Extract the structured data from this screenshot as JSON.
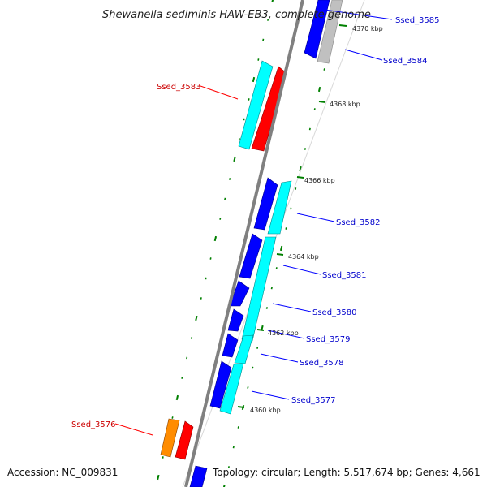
{
  "title": "Shewanella sediminis HAW-EB3, complete genome",
  "footer": {
    "accession": "Accession: NC_009831",
    "summary": "Topology: circular; Length: 5,517,674 bp; Genes: 4,661"
  },
  "scale_labels": [
    "4370 kbp",
    "4368 kbp",
    "4366 kbp",
    "4364 kbp",
    "4362 kbp",
    "4360 kbp"
  ],
  "genes": [
    {
      "name": "Ssed_3585",
      "strand": "-",
      "color": "#0000ff",
      "label_color": "#0000cc"
    },
    {
      "name": "Ssed_3584",
      "strand": "-",
      "color": "#bbbbbb",
      "label_color": "#0000cc"
    },
    {
      "name": "Ssed_3583",
      "strand": "+",
      "color": "#ff0000",
      "label_color": "#cc0000"
    },
    {
      "name": "Ssed_3582",
      "strand": "-",
      "color": "#00ffff",
      "label_color": "#0000cc"
    },
    {
      "name": "Ssed_3581",
      "strand": "-",
      "color": "#00ffff",
      "label_color": "#0000cc"
    },
    {
      "name": "Ssed_3580",
      "strand": "-",
      "color": "#0000ff",
      "label_color": "#0000cc"
    },
    {
      "name": "Ssed_3579",
      "strand": "-",
      "color": "#0000ff",
      "label_color": "#0000cc"
    },
    {
      "name": "Ssed_3578",
      "strand": "-",
      "color": "#00ffff",
      "label_color": "#0000cc"
    },
    {
      "name": "Ssed_3577",
      "strand": "-",
      "color": "#00ffff",
      "label_color": "#0000cc"
    },
    {
      "name": "Ssed_3576",
      "strand": "+",
      "color": "#ff0000",
      "label_color": "#cc0000"
    }
  ],
  "colors": {
    "backbone": "#808080",
    "gc_skew_ticks": "#008000",
    "label_forward": "#cc0000",
    "label_reverse": "#0000cc"
  }
}
